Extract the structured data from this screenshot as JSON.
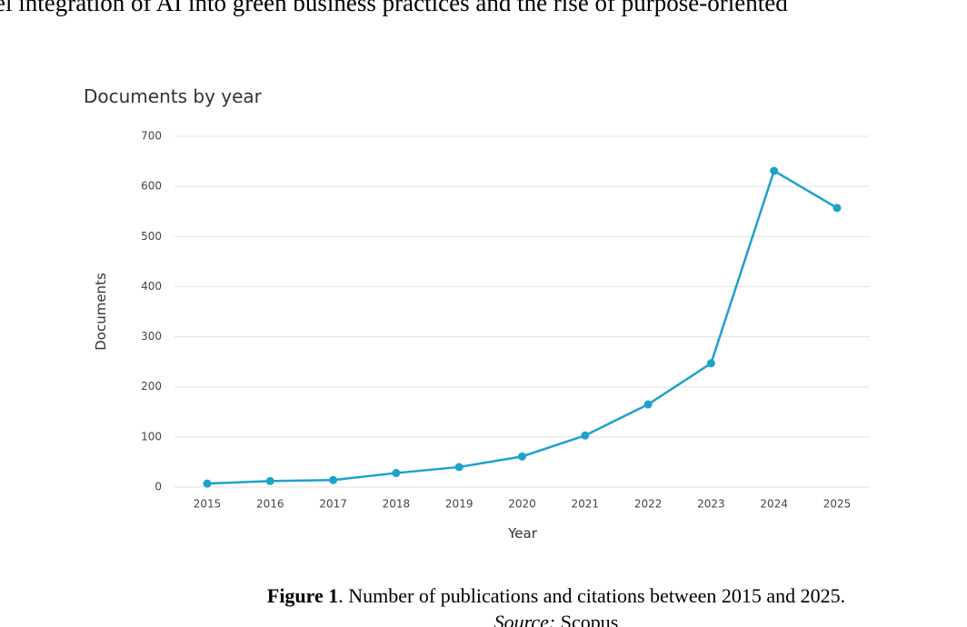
{
  "document": {
    "text_above": "el integration of AI into green business practices and the rise of purpose-oriented",
    "caption_label": "Figure 1",
    "caption_text": ". Number of publications and citations between 2015 and 2025.",
    "source_label": "Source:",
    "source_text": " Scopus"
  },
  "chart_data": {
    "type": "line",
    "title": "Documents by year",
    "x_label": "Year",
    "y_label": "Documents",
    "categories": [
      "2015",
      "2016",
      "2017",
      "2018",
      "2019",
      "2020",
      "2021",
      "2022",
      "2023",
      "2024",
      "2025"
    ],
    "values": [
      7,
      12,
      14,
      28,
      40,
      61,
      103,
      165,
      247,
      631,
      557
    ],
    "color": "#1ea2cb",
    "ylim": [
      0,
      700
    ],
    "yticks": [
      0,
      100,
      200,
      300,
      400,
      500,
      600,
      700
    ],
    "grid": true
  }
}
